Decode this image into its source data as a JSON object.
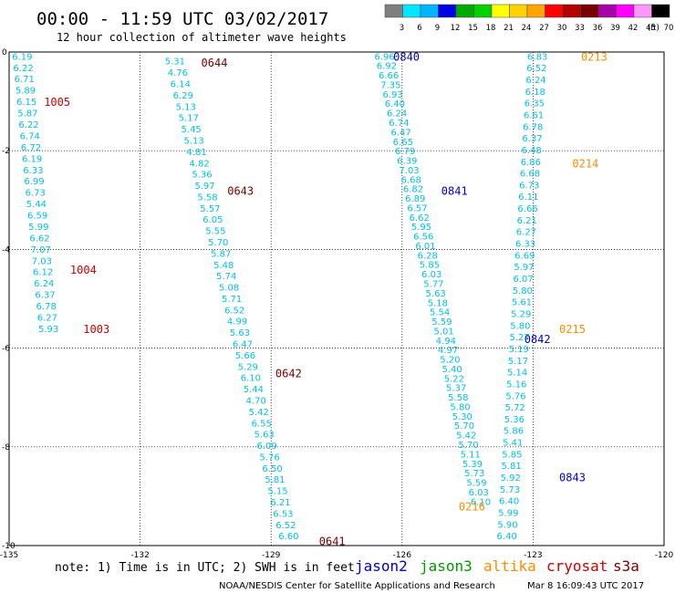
{
  "header": {
    "title": "00:00 - 11:59 UTC 03/02/2017",
    "subtitle": "12 hour collection of altimeter wave heights"
  },
  "colorbar": {
    "colors": [
      "#7f7f7f",
      "#00e6ff",
      "#00b4ff",
      "#0000e6",
      "#00aa00",
      "#00d200",
      "#ffff00",
      "#ffd200",
      "#ffa500",
      "#ff0000",
      "#b40000",
      "#780000",
      "#aa00aa",
      "#ff00ff",
      "#ff96ff",
      "#000000"
    ],
    "labels": [
      "3",
      "6",
      "9",
      "12",
      "15",
      "18",
      "21",
      "24",
      "27",
      "30",
      "33",
      "36",
      "39",
      "42",
      "45",
      "70",
      "(ft)"
    ]
  },
  "notes": {
    "note": "note: 1) Time is in UTC; 2) SWH is in feet",
    "credit": "NOAA/NESDIS Center for Satellite Applications and Research",
    "timestamp": "Mar  8 16:09:43 UTC 2017"
  },
  "legend": [
    {
      "name": "jason2",
      "color": "#0000cc"
    },
    {
      "name": "jason3",
      "color": "#009900"
    },
    {
      "name": "altika",
      "color": "#ff8c00"
    },
    {
      "name": "cryosat",
      "color": "#cc0000"
    },
    {
      "name": "s3a",
      "color": "#7a0000"
    }
  ],
  "chart_data": {
    "type": "scatter",
    "title": "00:00 - 11:59 UTC 03/02/2017",
    "subtitle": "12 hour collection of altimeter wave heights",
    "xlim": [
      -135,
      -120
    ],
    "ylim": [
      -10,
      0
    ],
    "x_ticks": [
      "-135",
      "-132",
      "-129",
      "-126",
      "-123",
      "-120"
    ],
    "y_ticks": [
      "0",
      "-2",
      "-4",
      "-6",
      "-8",
      "-10"
    ],
    "grid": true,
    "value_color": "#00bfe8",
    "series": [
      {
        "name": "cryosat",
        "color": "#cc0000",
        "track": [
          [
            -134.7,
            -0.08
          ],
          [
            -134.1,
            -5.6
          ]
        ],
        "values": [
          "6.19",
          "6.22",
          "6.71",
          "5.89",
          "6.15",
          "5.87",
          "6.22",
          "6.74",
          "6.72",
          "6.19",
          "6.33",
          "6.99",
          "6.73",
          "5.44",
          "6.59",
          "5.99",
          "6.62",
          "7.07",
          "7.03",
          "6.12",
          "6.24",
          "6.37",
          "6.78",
          "6.27",
          "5.93"
        ],
        "passes": [
          {
            "label": "1005",
            "x": -133.9,
            "y": -1.0
          },
          {
            "label": "1004",
            "x": -133.3,
            "y": -4.4
          },
          {
            "label": "1003",
            "x": -133.0,
            "y": -5.6
          }
        ]
      },
      {
        "name": "s3a",
        "color": "#7a0000",
        "track": [
          [
            -131.2,
            -0.18
          ],
          [
            -128.6,
            -9.8
          ]
        ],
        "values": [
          "5.31",
          "4.76",
          "6.14",
          "6.29",
          "5.13",
          "5.17",
          "5.45",
          "5.13",
          "4.81",
          "4.82",
          "5.36",
          "5.97",
          "5.58",
          "5.57",
          "6.05",
          "5.55",
          "5.70",
          "5.87",
          "5.48",
          "5.74",
          "5.08",
          "5.71",
          "6.52",
          "4.99",
          "5.63",
          "6.47",
          "5.66",
          "5.29",
          "6.10",
          "5.44",
          "4.70",
          "5.42",
          "6.55",
          "5.63",
          "6.09",
          "5.76",
          "6.50",
          "5.81",
          "5.15",
          "6.21",
          "6.53",
          "6.52",
          "6.60"
        ],
        "passes": [
          {
            "label": "0644",
            "x": -130.3,
            "y": -0.2
          },
          {
            "label": "0643",
            "x": -129.7,
            "y": -2.8
          },
          {
            "label": "0642",
            "x": -128.6,
            "y": -6.5
          },
          {
            "label": "0641",
            "x": -127.6,
            "y": -9.9
          }
        ]
      },
      {
        "name": "jason2",
        "color": "#0000cc",
        "track": [
          [
            -126.4,
            -0.08
          ],
          [
            -124.2,
            -9.1
          ]
        ],
        "values": [
          "6.96",
          "6.92",
          "6.66",
          "7.35",
          "6.93",
          "6.40",
          "6.24",
          "6.74",
          "6.47",
          "6.65",
          "6.79",
          "6.39",
          "7.03",
          "6.68",
          "6.82",
          "6.89",
          "6.57",
          "6.62",
          "5.95",
          "6.56",
          "6.01",
          "6.28",
          "5.85",
          "6.03",
          "5.77",
          "5.63",
          "5.18",
          "5.54",
          "5.59",
          "5.01",
          "4.94",
          "4.97",
          "5.20",
          "5.40",
          "5.22",
          "5.37",
          "5.58",
          "5.80",
          "5.30",
          "5.70",
          "5.42",
          "5.70",
          "5.11",
          "5.39",
          "5.73",
          "5.59",
          "6.03",
          "6.10"
        ],
        "passes": [
          {
            "label": "0840",
            "x": -125.9,
            "y": -0.08
          },
          {
            "label": "0841",
            "x": -124.8,
            "y": -2.8
          },
          {
            "label": "0842",
            "x": -122.9,
            "y": -5.8
          },
          {
            "label": "0843",
            "x": -122.1,
            "y": -8.6
          }
        ]
      },
      {
        "name": "altika",
        "color": "#ff8c00",
        "track": [
          [
            -122.9,
            -0.08
          ],
          [
            -123.6,
            -9.8
          ]
        ],
        "values": [
          "6.83",
          "6.52",
          "6.24",
          "6.18",
          "6.35",
          "6.61",
          "6.78",
          "6.37",
          "6.48",
          "6.86",
          "6.68",
          "6.73",
          "6.11",
          "6.66",
          "6.21",
          "6.27",
          "6.33",
          "6.69",
          "5.97",
          "6.07",
          "5.80",
          "5.61",
          "5.29",
          "5.80",
          "5.27",
          "5.19",
          "5.17",
          "5.14",
          "5.16",
          "5.76",
          "5.72",
          "5.36",
          "5.86",
          "5.41",
          "5.85",
          "5.81",
          "5.92",
          "5.73",
          "6.40",
          "5.99",
          "5.90",
          "6.40"
        ],
        "passes": [
          {
            "label": "0213",
            "x": -121.6,
            "y": -0.08
          },
          {
            "label": "0214",
            "x": -121.8,
            "y": -2.25
          },
          {
            "label": "0215",
            "x": -122.1,
            "y": -5.6
          },
          {
            "label": "0216",
            "x": -124.4,
            "y": -9.2
          }
        ]
      }
    ]
  }
}
